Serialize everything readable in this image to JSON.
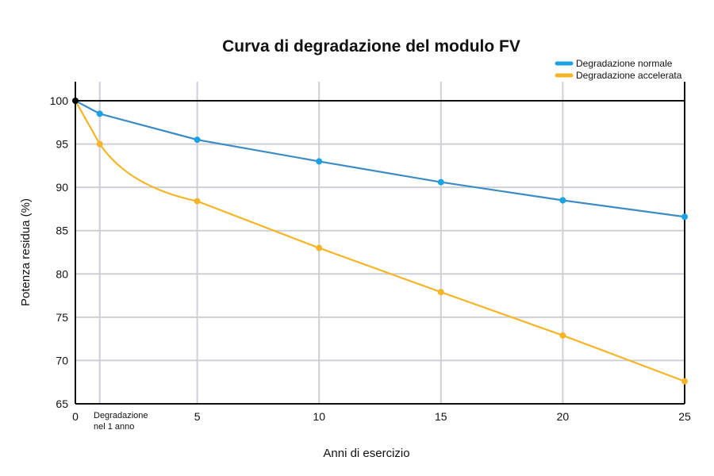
{
  "chart_data": {
    "type": "line",
    "title": "Curva di degradazione del modulo FV",
    "xlabel": "Anni di esercizio",
    "ylabel": "Potenza residua (%)",
    "xlim": [
      0,
      25
    ],
    "ylim": [
      65,
      100
    ],
    "x_ticks": [
      "0",
      "5",
      "10",
      "15",
      "20",
      "25"
    ],
    "y_ticks": [
      "65",
      "70",
      "75",
      "80",
      "85",
      "90",
      "95",
      "100"
    ],
    "x_annotation": "Degradazione nel 1 anno",
    "x_annotation_lines": [
      "Degradazione",
      "nel 1 anno"
    ],
    "grid": true,
    "legend_position": "top-right",
    "series": [
      {
        "name": "Degradazione normale",
        "color": "#3d8bc4",
        "marker_color": "#19a3e6",
        "x": [
          0,
          1,
          5,
          10,
          15,
          20,
          25
        ],
        "y": [
          100,
          98.5,
          95.5,
          93.0,
          90.6,
          88.5,
          86.6
        ]
      },
      {
        "name": "Degradazione accelerata",
        "color": "#f6b526",
        "marker_color": "#f6b526",
        "x": [
          0,
          1,
          5,
          10,
          15,
          20,
          25
        ],
        "y": [
          100,
          95.0,
          88.4,
          83.0,
          77.9,
          72.9,
          67.6
        ]
      }
    ]
  }
}
